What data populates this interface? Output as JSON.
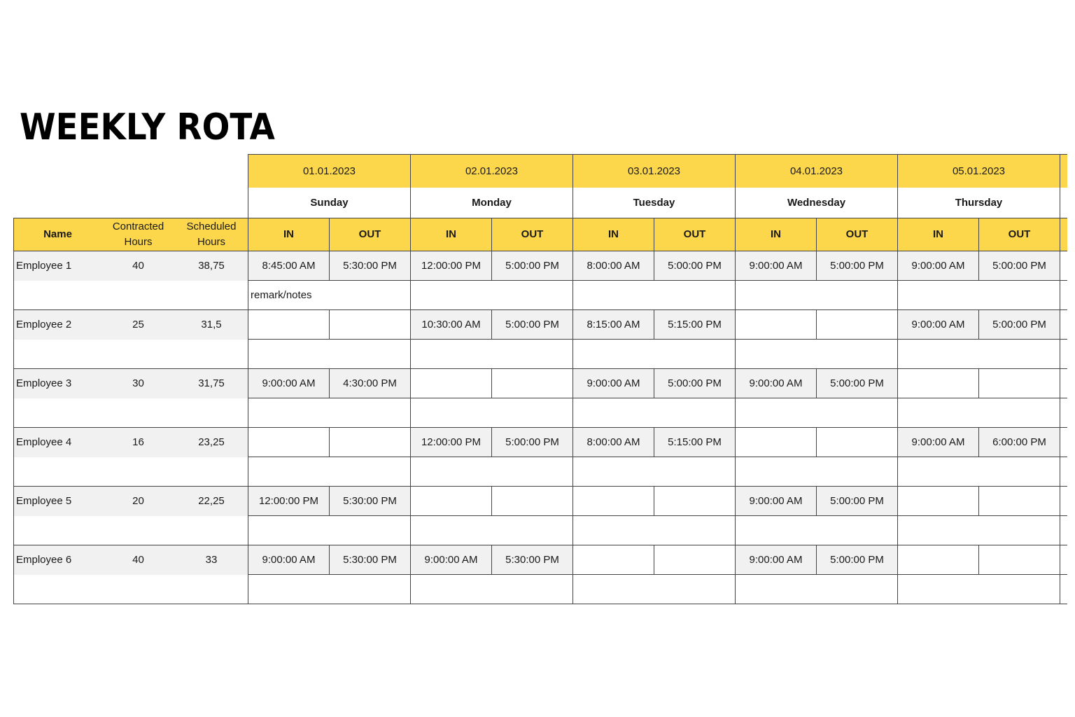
{
  "title": "WEEKLY ROTA",
  "colors": {
    "header_yellow": "#fcd64b",
    "row_gray": "#f1f1f1"
  },
  "days": [
    {
      "date": "01.01.2023",
      "name": "Sunday"
    },
    {
      "date": "02.01.2023",
      "name": "Monday"
    },
    {
      "date": "03.01.2023",
      "name": "Tuesday"
    },
    {
      "date": "04.01.2023",
      "name": "Wednesday"
    },
    {
      "date": "05.01.2023",
      "name": "Thursday"
    }
  ],
  "columns": {
    "name": "Name",
    "contracted": "Contracted Hours",
    "scheduled": "Scheduled Hours",
    "in": "IN",
    "out": "OUT"
  },
  "employees": [
    {
      "name": "Employee 1",
      "contracted": "40",
      "scheduled": "38,75",
      "note": "remark/notes",
      "shifts": [
        [
          "8:45:00 AM",
          "5:30:00 PM"
        ],
        [
          "12:00:00 PM",
          "5:00:00 PM"
        ],
        [
          "8:00:00 AM",
          "5:00:00 PM"
        ],
        [
          "9:00:00 AM",
          "5:00:00 PM"
        ],
        [
          "9:00:00 AM",
          "5:00:00 PM"
        ]
      ]
    },
    {
      "name": "Employee 2",
      "contracted": "25",
      "scheduled": "31,5",
      "note": "",
      "shifts": [
        [
          "",
          ""
        ],
        [
          "10:30:00 AM",
          "5:00:00 PM"
        ],
        [
          "8:15:00 AM",
          "5:15:00 PM"
        ],
        [
          "",
          ""
        ],
        [
          "9:00:00 AM",
          "5:00:00 PM"
        ]
      ]
    },
    {
      "name": "Employee 3",
      "contracted": "30",
      "scheduled": "31,75",
      "note": "",
      "shifts": [
        [
          "9:00:00 AM",
          "4:30:00 PM"
        ],
        [
          "",
          ""
        ],
        [
          "9:00:00 AM",
          "5:00:00 PM"
        ],
        [
          "9:00:00 AM",
          "5:00:00 PM"
        ],
        [
          "",
          ""
        ]
      ]
    },
    {
      "name": "Employee 4",
      "contracted": "16",
      "scheduled": "23,25",
      "note": "",
      "shifts": [
        [
          "",
          ""
        ],
        [
          "12:00:00 PM",
          "5:00:00 PM"
        ],
        [
          "8:00:00 AM",
          "5:15:00 PM"
        ],
        [
          "",
          ""
        ],
        [
          "9:00:00 AM",
          "6:00:00 PM"
        ]
      ]
    },
    {
      "name": "Employee 5",
      "contracted": "20",
      "scheduled": "22,25",
      "note": "",
      "shifts": [
        [
          "12:00:00 PM",
          "5:30:00 PM"
        ],
        [
          "",
          ""
        ],
        [
          "",
          ""
        ],
        [
          "9:00:00 AM",
          "5:00:00 PM"
        ],
        [
          "",
          ""
        ]
      ]
    },
    {
      "name": "Employee 6",
      "contracted": "40",
      "scheduled": "33",
      "note": "",
      "shifts": [
        [
          "9:00:00 AM",
          "5:30:00 PM"
        ],
        [
          "9:00:00 AM",
          "5:30:00 PM"
        ],
        [
          "",
          ""
        ],
        [
          "9:00:00 AM",
          "5:00:00 PM"
        ],
        [
          "",
          ""
        ]
      ]
    }
  ]
}
